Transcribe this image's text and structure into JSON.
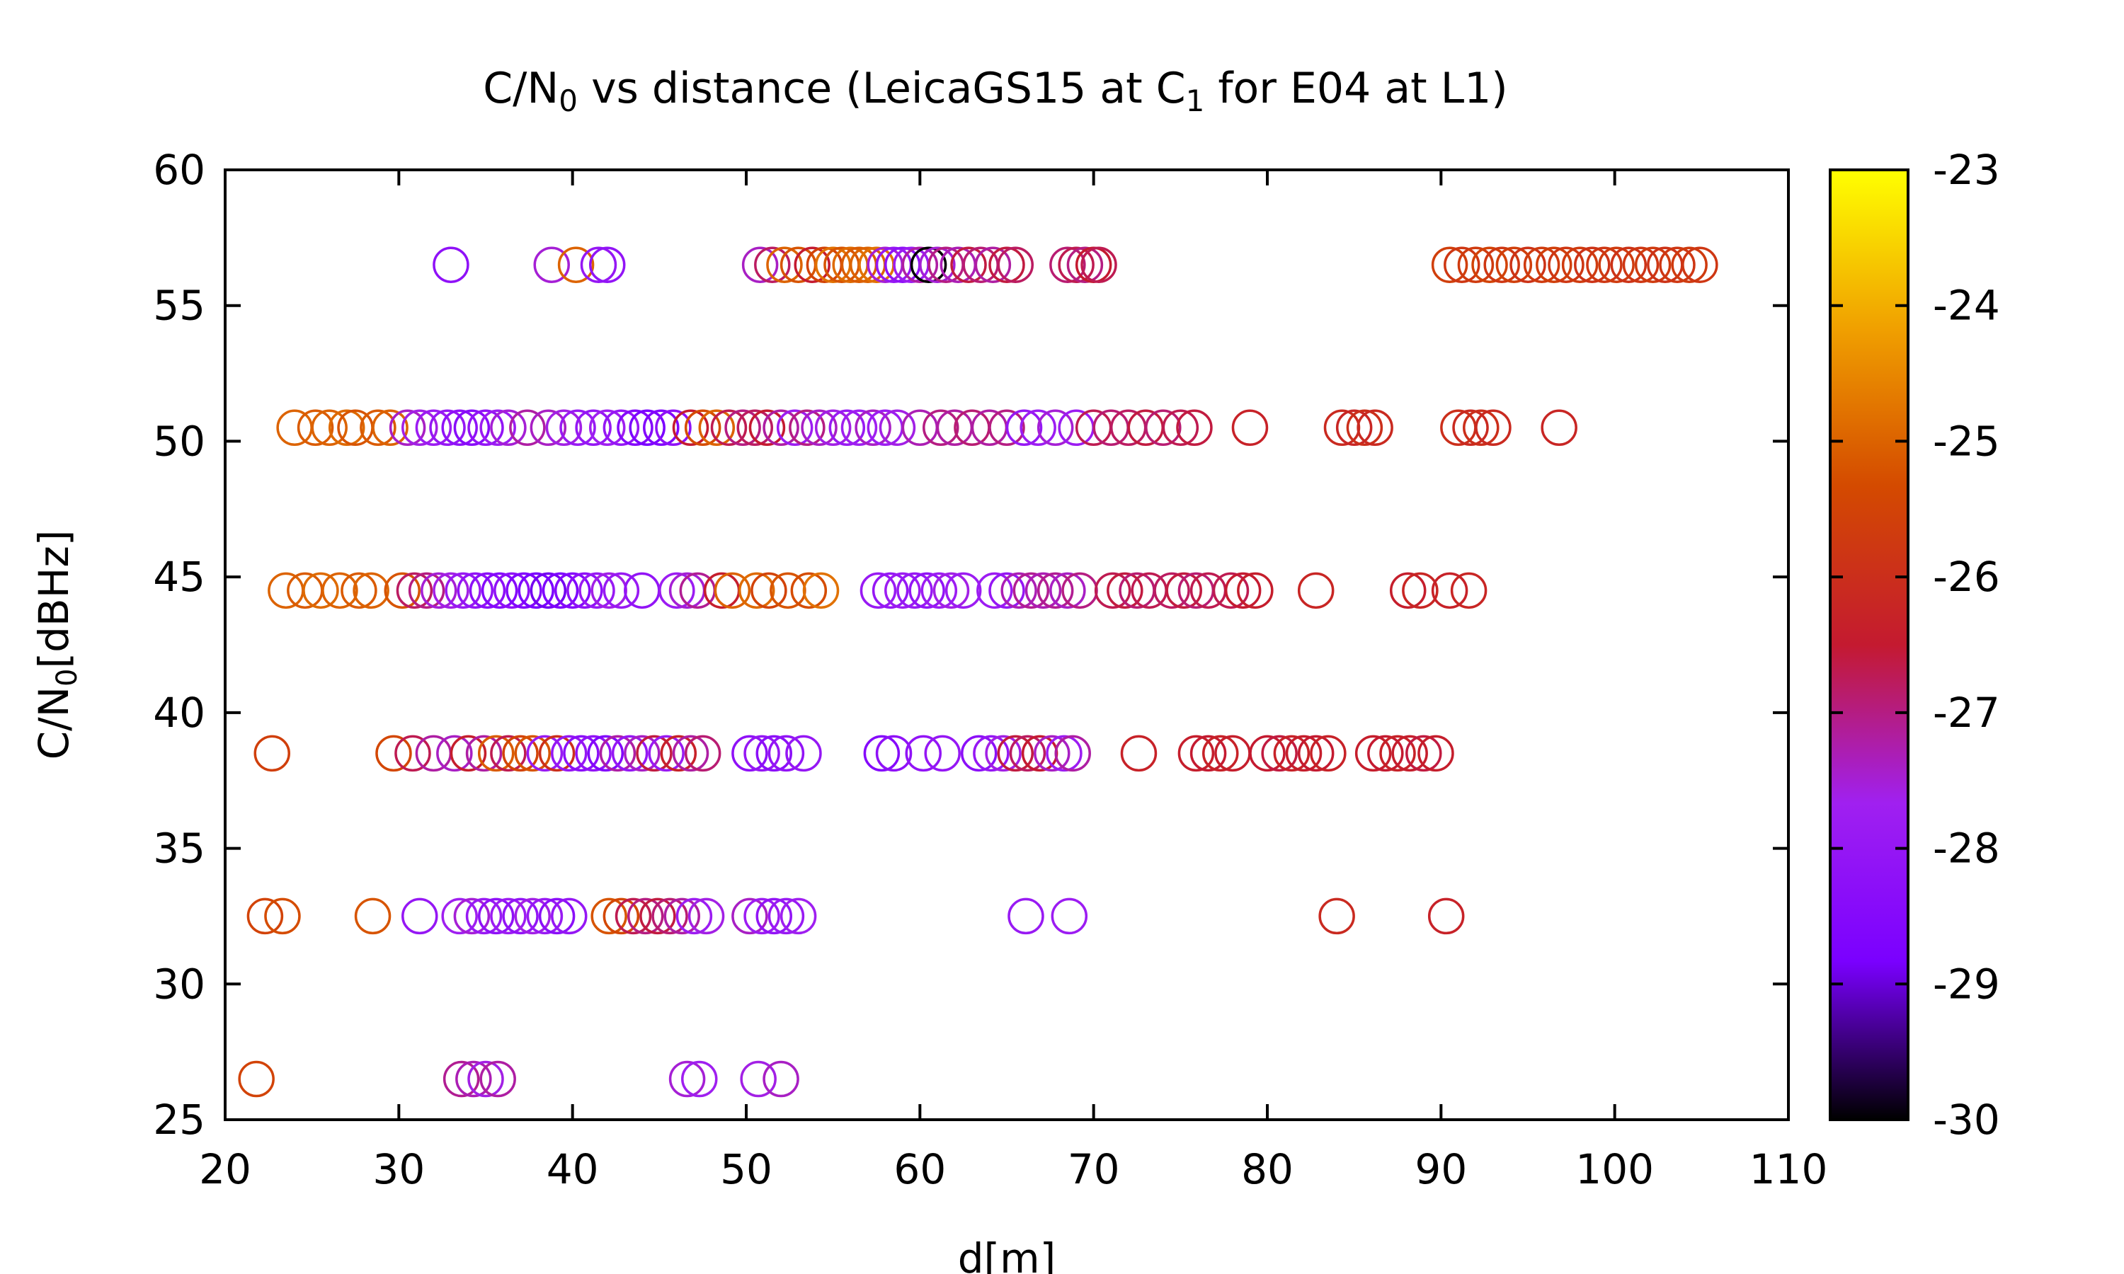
{
  "chart_data": {
    "type": "scatter",
    "title": {
      "prefix": "C/N",
      "sub0": "0",
      "middle": " vs distance (LeicaGS15 at C",
      "sub1": "1",
      "suffix": " for E04 at L1)"
    },
    "xlabel": "d[m]",
    "ylabel": {
      "prefix": "C/N",
      "sub": "0",
      "suffix": "[dBHz]"
    },
    "xlim": [
      20,
      110
    ],
    "ylim": [
      25,
      60
    ],
    "xticks": [
      20,
      30,
      40,
      50,
      60,
      70,
      80,
      90,
      100,
      110
    ],
    "yticks": [
      25,
      30,
      35,
      40,
      45,
      50,
      55,
      60
    ],
    "colorbar": {
      "range": [
        -30,
        -23
      ],
      "ticks": [
        -30,
        -29,
        -28,
        -27,
        -26,
        -25,
        -24,
        -23
      ],
      "palette": [
        "#000000",
        "#7a00ff",
        "#a020f0",
        "#c41a30",
        "#d44a00",
        "#f0a000",
        "#ffff00"
      ]
    },
    "marker": "open-circle",
    "grid": false,
    "series": [
      {
        "y": 56.5,
        "points": [
          [
            33,
            -28.2
          ],
          [
            38.8,
            -27.5
          ],
          [
            40.2,
            -25.0
          ],
          [
            41.5,
            -28.0
          ],
          [
            42,
            -28.1
          ],
          [
            50.8,
            -27.4
          ],
          [
            51.5,
            -26.8
          ],
          [
            52.2,
            -25.0
          ],
          [
            53,
            -25.2
          ],
          [
            53.8,
            -26.5
          ],
          [
            54.5,
            -25.5
          ],
          [
            55,
            -24.8
          ],
          [
            55.5,
            -25.2
          ],
          [
            56,
            -24.9
          ],
          [
            56.5,
            -25.1
          ],
          [
            57,
            -25.0
          ],
          [
            57.5,
            -24.8
          ],
          [
            58,
            -27.5
          ],
          [
            58.5,
            -28.0
          ],
          [
            59,
            -28.2
          ],
          [
            59.5,
            -27.8
          ],
          [
            60,
            -27.2
          ],
          [
            60.5,
            -30.0
          ],
          [
            61,
            -27.5
          ],
          [
            61.5,
            -27.0
          ],
          [
            62.2,
            -27.3
          ],
          [
            62.8,
            -26.6
          ],
          [
            63.5,
            -26.9
          ],
          [
            64.2,
            -27.2
          ],
          [
            65,
            -26.6
          ],
          [
            65.5,
            -26.8
          ],
          [
            68.5,
            -26.9
          ],
          [
            69,
            -26.7
          ],
          [
            69.5,
            -27.0
          ],
          [
            70,
            -26.5
          ],
          [
            70.3,
            -26.7
          ],
          [
            90.5,
            -25.6
          ],
          [
            91.2,
            -25.8
          ],
          [
            92,
            -25.7
          ],
          [
            92.8,
            -25.5
          ],
          [
            93.5,
            -25.8
          ],
          [
            94.2,
            -25.6
          ],
          [
            95,
            -25.9
          ],
          [
            95.8,
            -25.7
          ],
          [
            96.5,
            -25.6
          ],
          [
            97.2,
            -25.8
          ],
          [
            98,
            -25.7
          ],
          [
            98.7,
            -25.9
          ],
          [
            99.4,
            -25.8
          ],
          [
            100.1,
            -25.7
          ],
          [
            100.8,
            -25.9
          ],
          [
            101.5,
            -25.8
          ],
          [
            102.2,
            -25.7
          ],
          [
            102.9,
            -25.9
          ],
          [
            103.6,
            -25.8
          ],
          [
            104.3,
            -25.7
          ],
          [
            104.9,
            -25.8
          ]
        ]
      },
      {
        "y": 50.5,
        "points": [
          [
            24,
            -25.0
          ],
          [
            25.2,
            -25.1
          ],
          [
            26,
            -25.0
          ],
          [
            27,
            -24.9
          ],
          [
            27.5,
            -25.2
          ],
          [
            28.8,
            -25.1
          ],
          [
            29.5,
            -25.0
          ],
          [
            30.5,
            -27.4
          ],
          [
            31.2,
            -27.6
          ],
          [
            32,
            -27.8
          ],
          [
            32.8,
            -28.0
          ],
          [
            33.5,
            -28.2
          ],
          [
            34.2,
            -28.4
          ],
          [
            35,
            -28.1
          ],
          [
            35.7,
            -27.8
          ],
          [
            36.3,
            -27.5
          ],
          [
            37.4,
            -27.2
          ],
          [
            38.6,
            -27.4
          ],
          [
            39.5,
            -27.6
          ],
          [
            40.3,
            -27.9
          ],
          [
            41.2,
            -28.0
          ],
          [
            42,
            -27.7
          ],
          [
            42.8,
            -28.0
          ],
          [
            43.6,
            -28.5
          ],
          [
            44.3,
            -28.8
          ],
          [
            45.1,
            -28.6
          ],
          [
            45.8,
            -28.2
          ],
          [
            46.8,
            -26.5
          ],
          [
            47.5,
            -25.3
          ],
          [
            48.3,
            -25.0
          ],
          [
            49,
            -26.7
          ],
          [
            49.8,
            -27.0
          ],
          [
            50.5,
            -26.8
          ],
          [
            51.2,
            -26.5
          ],
          [
            52,
            -27.2
          ],
          [
            52.8,
            -27.8
          ],
          [
            53.5,
            -27.0
          ],
          [
            54.2,
            -27.4
          ],
          [
            55,
            -27.6
          ],
          [
            55.8,
            -27.9
          ],
          [
            56.5,
            -27.7
          ],
          [
            57.3,
            -27.4
          ],
          [
            58,
            -27.8
          ],
          [
            58.7,
            -27.6
          ],
          [
            60,
            -27.3
          ],
          [
            61.2,
            -27.0
          ],
          [
            62,
            -27.2
          ],
          [
            63,
            -26.9
          ],
          [
            64,
            -27.2
          ],
          [
            65,
            -27.0
          ],
          [
            66,
            -28.0
          ],
          [
            66.8,
            -27.8
          ],
          [
            67.8,
            -27.5
          ],
          [
            69,
            -27.8
          ],
          [
            70,
            -26.7
          ],
          [
            71,
            -26.9
          ],
          [
            72,
            -26.8
          ],
          [
            73,
            -26.6
          ],
          [
            74,
            -26.9
          ],
          [
            75,
            -26.7
          ],
          [
            75.8,
            -26.6
          ],
          [
            79,
            -26.3
          ],
          [
            84.3,
            -26.1
          ],
          [
            85,
            -26.2
          ],
          [
            85.6,
            -26.0
          ],
          [
            86.2,
            -26.1
          ],
          [
            91,
            -26.0
          ],
          [
            91.7,
            -26.1
          ],
          [
            92.3,
            -26.0
          ],
          [
            93,
            -26.1
          ],
          [
            96.8,
            -26.2
          ]
        ]
      },
      {
        "y": 44.5,
        "points": [
          [
            23.5,
            -25.0
          ],
          [
            24.6,
            -25.1
          ],
          [
            25.5,
            -24.9
          ],
          [
            26.6,
            -25.0
          ],
          [
            27.7,
            -25.1
          ],
          [
            28.4,
            -25.0
          ],
          [
            30.2,
            -25.2
          ],
          [
            30.9,
            -26.8
          ],
          [
            31.6,
            -27.0
          ],
          [
            32.3,
            -27.5
          ],
          [
            33,
            -27.6
          ],
          [
            33.7,
            -27.9
          ],
          [
            34.4,
            -28.1
          ],
          [
            35.1,
            -28.3
          ],
          [
            35.8,
            -28.5
          ],
          [
            36.5,
            -28.2
          ],
          [
            37.2,
            -28.6
          ],
          [
            37.9,
            -28.8
          ],
          [
            38.6,
            -28.9
          ],
          [
            39.3,
            -28.7
          ],
          [
            40,
            -28.5
          ],
          [
            40.7,
            -28.2
          ],
          [
            41.4,
            -27.9
          ],
          [
            42.1,
            -27.6
          ],
          [
            42.8,
            -27.9
          ],
          [
            44,
            -28.1
          ],
          [
            46,
            -27.8
          ],
          [
            46.6,
            -27.5
          ],
          [
            47.2,
            -27.1
          ],
          [
            48.6,
            -26.4
          ],
          [
            49.2,
            -25.0
          ],
          [
            50.6,
            -24.9
          ],
          [
            51.3,
            -25.5
          ],
          [
            52.4,
            -25.2
          ],
          [
            53.6,
            -25.3
          ],
          [
            54.3,
            -24.8
          ],
          [
            57.6,
            -27.9
          ],
          [
            58.3,
            -28.0
          ],
          [
            59,
            -27.8
          ],
          [
            59.7,
            -27.9
          ],
          [
            60.4,
            -28.1
          ],
          [
            61.1,
            -27.8
          ],
          [
            61.8,
            -27.6
          ],
          [
            62.5,
            -27.8
          ],
          [
            64.3,
            -27.8
          ],
          [
            65,
            -28.0
          ],
          [
            65.7,
            -27.3
          ],
          [
            66.4,
            -27.1
          ],
          [
            67.1,
            -27.3
          ],
          [
            67.8,
            -27.1
          ],
          [
            68.5,
            -27.4
          ],
          [
            69.2,
            -27.0
          ],
          [
            71.1,
            -26.7
          ],
          [
            71.8,
            -26.6
          ],
          [
            72.5,
            -26.9
          ],
          [
            73.2,
            -26.7
          ],
          [
            74.5,
            -26.8
          ],
          [
            75.2,
            -26.6
          ],
          [
            75.9,
            -26.9
          ],
          [
            76.6,
            -26.7
          ],
          [
            77.9,
            -26.7
          ],
          [
            78.6,
            -26.5
          ],
          [
            79.3,
            -26.4
          ],
          [
            82.8,
            -26.2
          ],
          [
            88.1,
            -26.4
          ],
          [
            88.8,
            -26.2
          ],
          [
            90.5,
            -26.3
          ],
          [
            91.6,
            -26.2
          ]
        ]
      },
      {
        "y": 38.5,
        "points": [
          [
            22.7,
            -25.6
          ],
          [
            29.7,
            -25.4
          ],
          [
            30.8,
            -26.7
          ],
          [
            32,
            -27.2
          ],
          [
            33.2,
            -27.4
          ],
          [
            34,
            -26.4
          ],
          [
            34.9,
            -27.2
          ],
          [
            35.6,
            -25.1
          ],
          [
            36.3,
            -26.7
          ],
          [
            37,
            -25.5
          ],
          [
            37.7,
            -25.2
          ],
          [
            38.4,
            -27.9
          ],
          [
            39.1,
            -26.0
          ],
          [
            39.8,
            -28.0
          ],
          [
            40.5,
            -28.3
          ],
          [
            41.2,
            -28.1
          ],
          [
            41.9,
            -28.6
          ],
          [
            42.6,
            -27.2
          ],
          [
            43.3,
            -28.0
          ],
          [
            44,
            -27.4
          ],
          [
            44.7,
            -26.6
          ],
          [
            45.4,
            -27.9
          ],
          [
            46.1,
            -26.3
          ],
          [
            46.8,
            -27.2
          ],
          [
            47.5,
            -26.9
          ],
          [
            50.2,
            -28.2
          ],
          [
            50.9,
            -28.0
          ],
          [
            51.6,
            -28.3
          ],
          [
            52.3,
            -28.1
          ],
          [
            53.3,
            -28.0
          ],
          [
            57.8,
            -28.5
          ],
          [
            58.5,
            -28.2
          ],
          [
            60.2,
            -28.1
          ],
          [
            61.3,
            -28.0
          ],
          [
            63.4,
            -28.3
          ],
          [
            64.1,
            -28.0
          ],
          [
            64.8,
            -27.6
          ],
          [
            65.5,
            -26.6
          ],
          [
            66.2,
            -26.8
          ],
          [
            66.9,
            -26.5
          ],
          [
            67.6,
            -27.4
          ],
          [
            68.3,
            -27.8
          ],
          [
            68.8,
            -27.2
          ],
          [
            72.6,
            -26.3
          ],
          [
            75.9,
            -26.4
          ],
          [
            76.6,
            -26.5
          ],
          [
            77.3,
            -26.3
          ],
          [
            78,
            -26.4
          ],
          [
            80,
            -26.5
          ],
          [
            80.7,
            -26.6
          ],
          [
            81.4,
            -26.3
          ],
          [
            82.1,
            -26.4
          ],
          [
            82.8,
            -26.5
          ],
          [
            83.5,
            -26.3
          ],
          [
            86.1,
            -26.4
          ],
          [
            86.8,
            -26.5
          ],
          [
            87.5,
            -26.3
          ],
          [
            88.2,
            -26.4
          ],
          [
            89,
            -26.6
          ],
          [
            89.7,
            -26.4
          ]
        ]
      },
      {
        "y": 32.5,
        "points": [
          [
            22.3,
            -25.5
          ],
          [
            23.3,
            -25.3
          ],
          [
            28.5,
            -25.2
          ],
          [
            31.2,
            -28.0
          ],
          [
            33.5,
            -27.7
          ],
          [
            34.2,
            -27.5
          ],
          [
            34.9,
            -27.9
          ],
          [
            35.6,
            -28.2
          ],
          [
            36.3,
            -27.8
          ],
          [
            37,
            -28.1
          ],
          [
            37.7,
            -27.6
          ],
          [
            38.4,
            -27.9
          ],
          [
            39.1,
            -28.3
          ],
          [
            39.8,
            -28.0
          ],
          [
            42.1,
            -25.2
          ],
          [
            42.8,
            -25.4
          ],
          [
            43.5,
            -26.7
          ],
          [
            44.2,
            -27.0
          ],
          [
            44.9,
            -26.6
          ],
          [
            45.6,
            -26.9
          ],
          [
            46.3,
            -27.2
          ],
          [
            47,
            -27.8
          ],
          [
            47.7,
            -27.6
          ],
          [
            50.2,
            -27.4
          ],
          [
            50.9,
            -27.8
          ],
          [
            51.6,
            -28.1
          ],
          [
            52.3,
            -27.9
          ],
          [
            53,
            -27.7
          ],
          [
            66.1,
            -27.9
          ],
          [
            68.6,
            -27.8
          ],
          [
            84,
            -26.1
          ],
          [
            90.3,
            -26.3
          ]
        ]
      },
      {
        "y": 26.5,
        "points": [
          [
            21.8,
            -25.5
          ],
          [
            33.6,
            -27.1
          ],
          [
            34.3,
            -27.3
          ],
          [
            35,
            -27.6
          ],
          [
            35.7,
            -27.2
          ],
          [
            46.6,
            -27.5
          ],
          [
            47.3,
            -27.7
          ],
          [
            50.7,
            -27.6
          ],
          [
            52,
            -27.4
          ]
        ]
      }
    ]
  }
}
